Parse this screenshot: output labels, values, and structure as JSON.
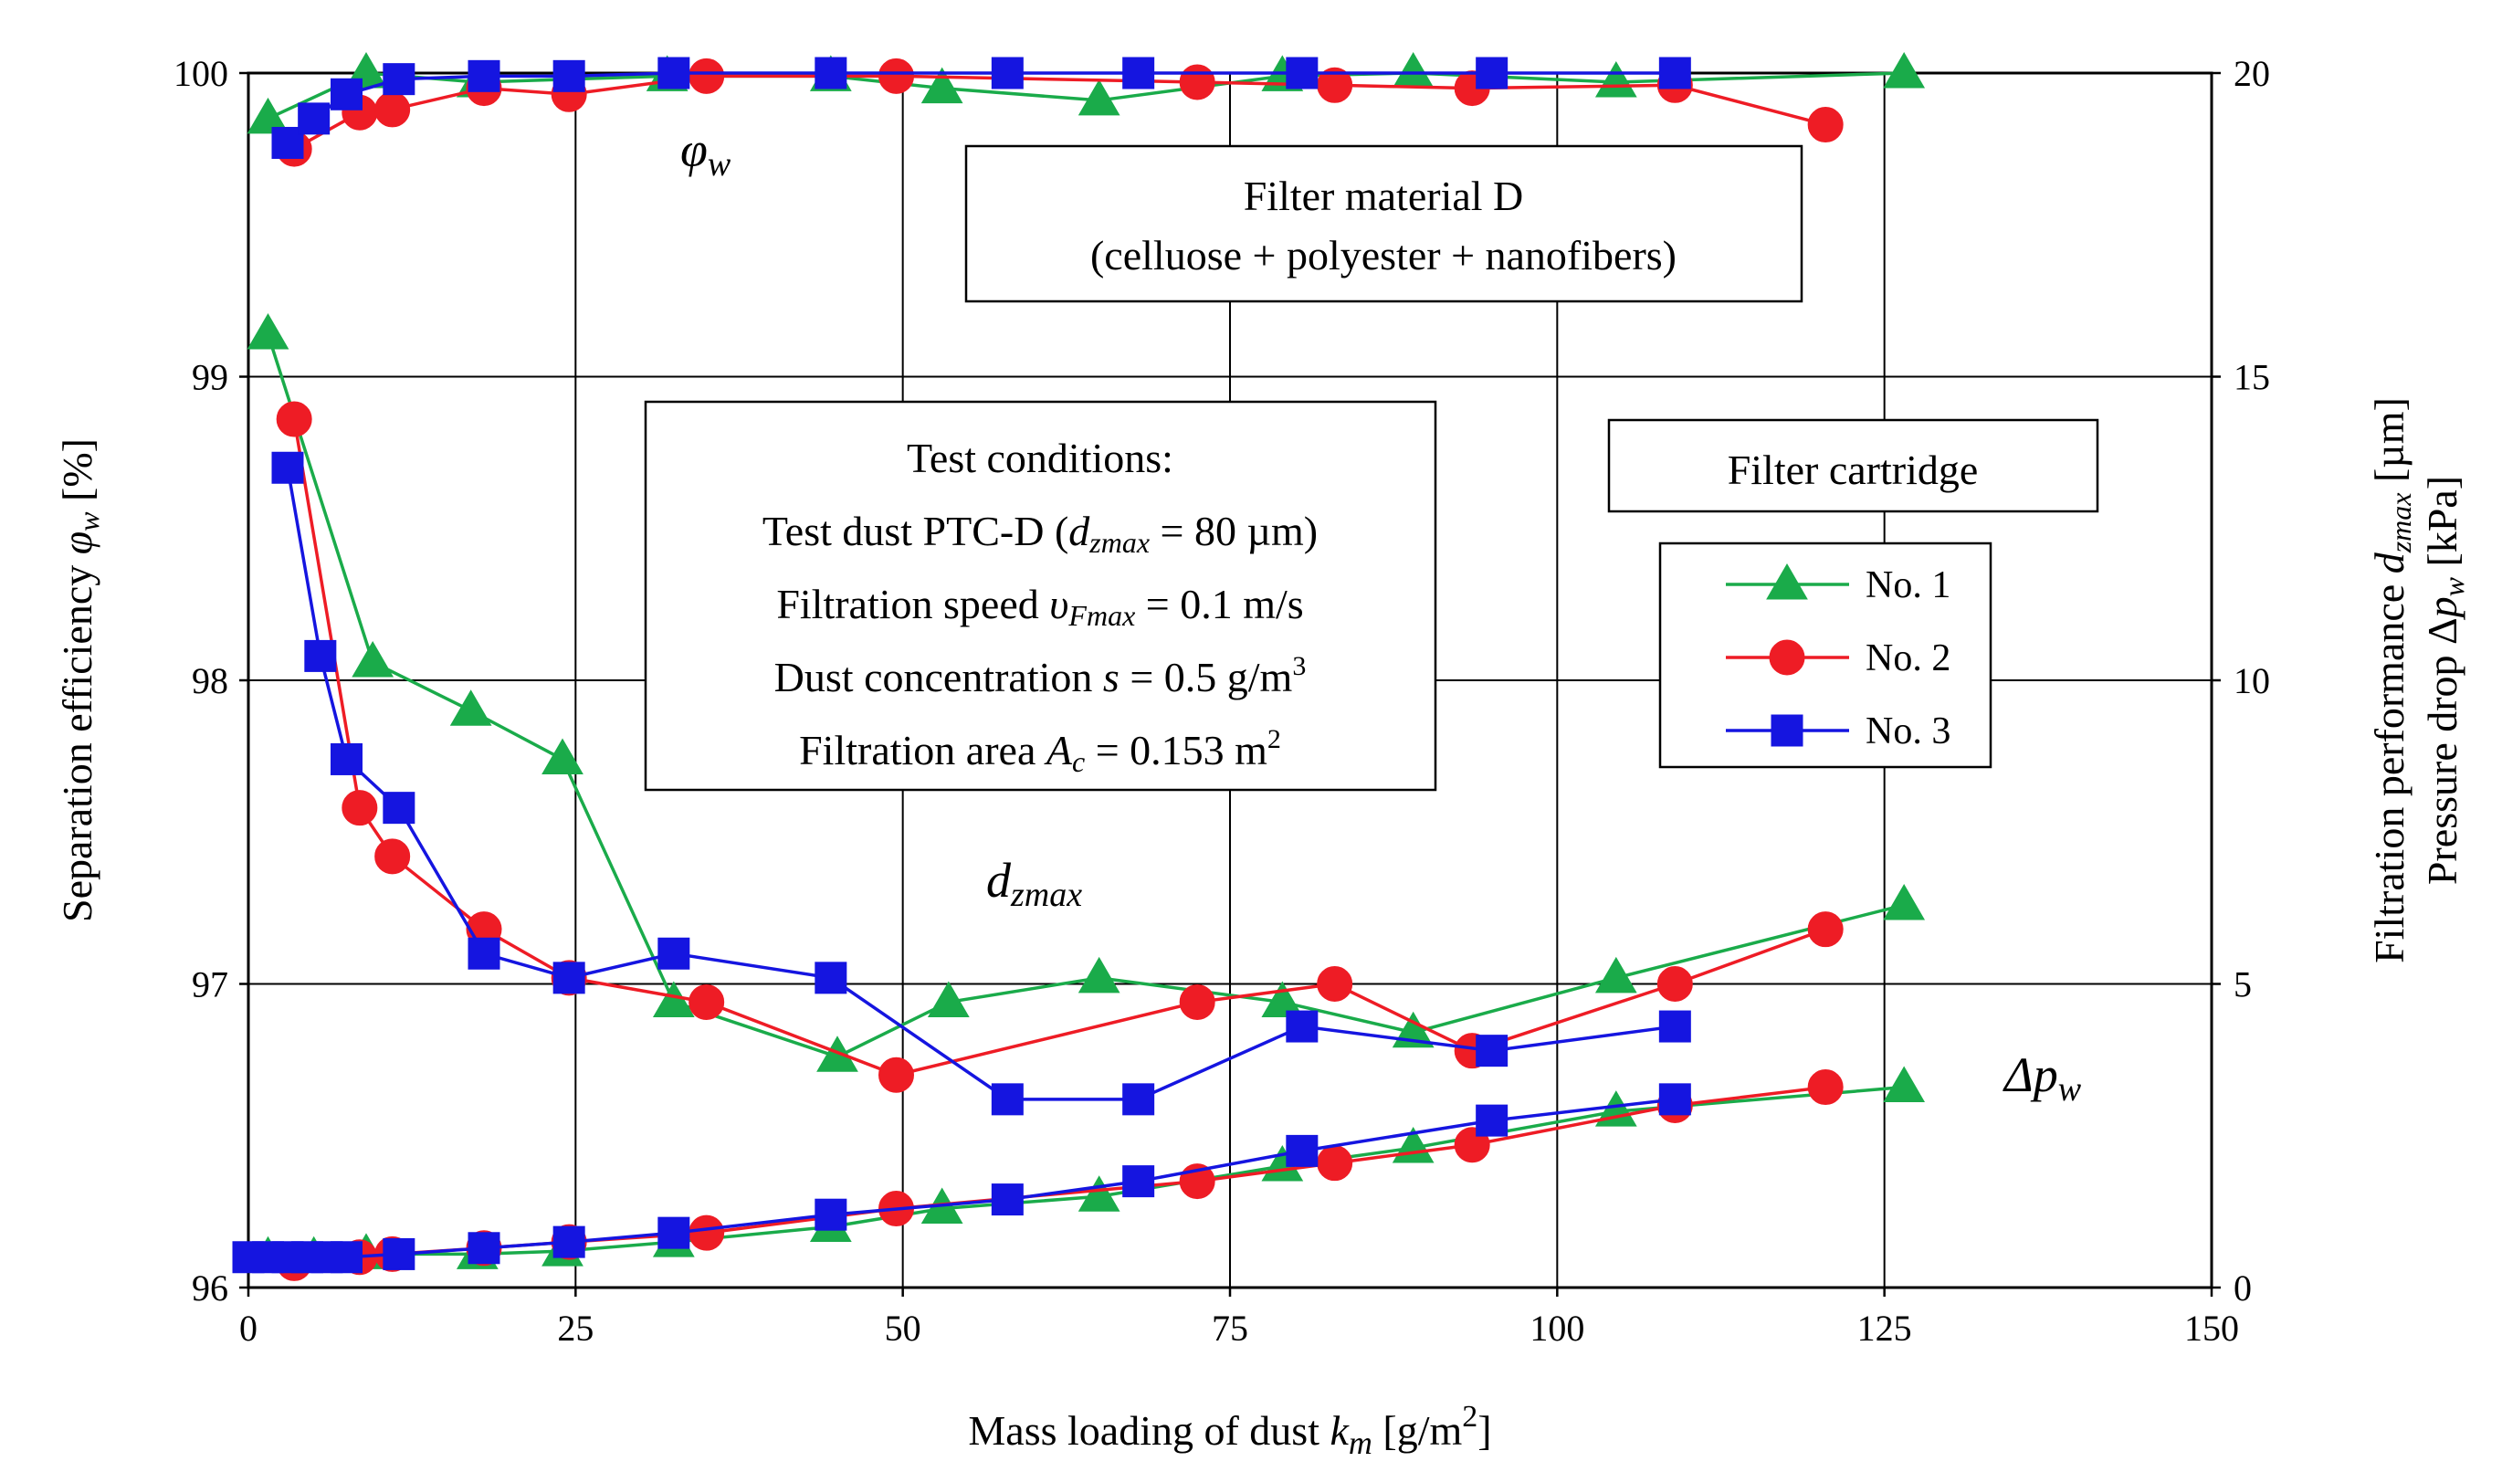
{
  "chart_data": {
    "type": "line",
    "title": "",
    "xlabel": {
      "main": "Mass loading of dust ",
      "var": "k",
      "sub": "m",
      "unit": " [g/m",
      "sup": "2",
      "close": "]"
    },
    "ylabel_left": {
      "main": "Separation efficiency ",
      "var": "φ",
      "sub": "w",
      "unit": " [%]"
    },
    "ylabel_right_1": {
      "main": "Filtration performance ",
      "var": "d",
      "sub": "zmax",
      "unit": " [µm]"
    },
    "ylabel_right_2": {
      "main": "Pressure drop Δ",
      "var": "p",
      "sub": "w",
      "unit": " [kPa]"
    },
    "xlim": [
      0,
      150
    ],
    "ylim_left": [
      96,
      100
    ],
    "ylim_right": [
      0,
      20
    ],
    "x_ticks": [
      "0",
      "25",
      "50",
      "75",
      "100",
      "125",
      "150"
    ],
    "y_left_ticks": [
      "96",
      "97",
      "98",
      "99",
      "100"
    ],
    "y_right_ticks": [
      "0",
      "5",
      "10",
      "15",
      "20"
    ],
    "grid": true,
    "curve_labels": {
      "phi": {
        "var": "φ",
        "sub": "w"
      },
      "dz": {
        "var": "d",
        "sub": "zmax"
      },
      "dp": {
        "var": "Δp",
        "sub": "w"
      }
    },
    "series": [
      {
        "name": "No. 1",
        "marker": "triangle",
        "color": "#1aab4a",
        "efficiency": {
          "x": [
            1.5,
            9,
            17.5,
            32,
            44.5,
            53,
            65,
            79,
            89,
            104.5,
            126.5
          ],
          "y": [
            99.85,
            100.0,
            99.97,
            99.99,
            99.99,
            99.95,
            99.91,
            99.99,
            100.0,
            99.97,
            100.0
          ]
        },
        "dzmax": {
          "x": [
            1.5,
            9.5,
            17,
            24,
            32.5,
            45,
            53.5,
            65,
            79,
            89,
            104.5,
            126.5
          ],
          "y": [
            15.7,
            10.3,
            9.5,
            8.7,
            4.7,
            3.8,
            4.7,
            5.1,
            4.7,
            4.2,
            5.1,
            6.3
          ]
        },
        "pressure": {
          "x": [
            1.5,
            5,
            9,
            17.5,
            24,
            32.5,
            44.5,
            53,
            65,
            79,
            89,
            104.5,
            126.5
          ],
          "y": [
            0.5,
            0.5,
            0.55,
            0.55,
            0.6,
            0.75,
            1.0,
            1.3,
            1.5,
            2.0,
            2.3,
            2.9,
            3.3
          ]
        }
      },
      {
        "name": "No. 2",
        "marker": "circle",
        "color": "#ee1c25",
        "efficiency": {
          "x": [
            3.5,
            8.5,
            11,
            18,
            24.5,
            35,
            49.5,
            72.5,
            83,
            93.5,
            109,
            120.5
          ],
          "y": [
            99.75,
            99.87,
            99.88,
            99.95,
            99.93,
            99.99,
            99.99,
            99.97,
            99.96,
            99.95,
            99.96,
            99.83
          ]
        },
        "dzmax": {
          "x": [
            3.5,
            8.5,
            11,
            18,
            24.5,
            35,
            49.5,
            72.5,
            83,
            93.5,
            109,
            120.5
          ],
          "y": [
            14.3,
            7.9,
            7.1,
            5.9,
            5.1,
            4.7,
            3.5,
            4.7,
            5.0,
            3.9,
            5.0,
            5.9
          ]
        },
        "pressure": {
          "x": [
            3.5,
            8.5,
            11,
            18,
            24.5,
            35,
            49.5,
            72.5,
            83,
            93.5,
            109,
            120.5
          ],
          "y": [
            0.4,
            0.5,
            0.55,
            0.65,
            0.75,
            0.9,
            1.3,
            1.75,
            2.05,
            2.35,
            3.0,
            3.3
          ]
        }
      },
      {
        "name": "No. 3",
        "marker": "square",
        "color": "#1515e0",
        "efficiency": {
          "x": [
            3,
            5,
            7.5,
            11.5,
            18,
            24.5,
            32.5,
            44.5,
            58,
            68,
            80.5,
            95,
            109
          ],
          "y": [
            99.77,
            99.85,
            99.93,
            99.98,
            99.99,
            99.99,
            100.0,
            100.0,
            100.0,
            100.0,
            100.0,
            100.0,
            100.0
          ]
        },
        "dzmax": {
          "x": [
            3,
            5.5,
            7.5,
            11.5,
            18,
            24.5,
            32.5,
            44.5,
            58,
            68,
            80.5,
            95,
            109
          ],
          "y": [
            13.5,
            10.4,
            8.7,
            7.9,
            5.5,
            5.1,
            5.5,
            5.1,
            3.1,
            3.1,
            4.3,
            3.9,
            4.3
          ]
        },
        "pressure": {
          "x": [
            0,
            1.5,
            3,
            4.5,
            6,
            7.5,
            11.5,
            18,
            24.5,
            32.5,
            44.5,
            58,
            68,
            80.5,
            95,
            109
          ],
          "y": [
            0.5,
            0.5,
            0.5,
            0.5,
            0.5,
            0.5,
            0.55,
            0.65,
            0.75,
            0.9,
            1.2,
            1.45,
            1.75,
            2.25,
            2.75,
            3.1
          ]
        }
      }
    ],
    "annotation_material": {
      "line1": "Filter material D",
      "line2": "(celluose + polyester  + nanofibers)"
    },
    "annotation_conditions": {
      "title": "Test conditions:",
      "dust": {
        "a": "Test dust PTC-D (",
        "var": "d",
        "sub": "zmax",
        "b": " = 80 µm)"
      },
      "speed": {
        "a": "Filtration speed  ",
        "var": "υ",
        "sub": "Fmax",
        "b": " = 0.1 m/s"
      },
      "conc": {
        "a": "Dust concentration  ",
        "var": "s",
        "b": " = 0.5 g/m",
        "sup": "3"
      },
      "area": {
        "a": "Filtration area ",
        "var": "A",
        "sub": "c",
        "b": " = 0.153 m",
        "sup": "2"
      }
    },
    "legend_title": "Filter cartridge",
    "legend_position": "right-middle"
  }
}
